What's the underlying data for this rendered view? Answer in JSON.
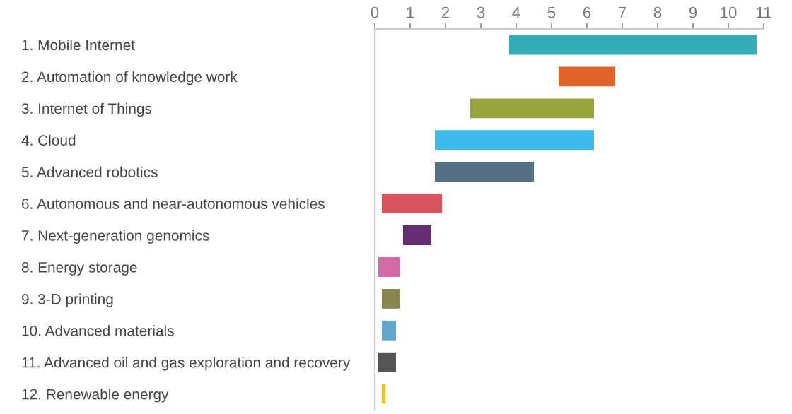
{
  "chart_data": {
    "type": "bar",
    "orientation": "horizontal",
    "categories": [
      "1. Mobile Internet",
      "2. Automation of knowledge work",
      "3. Internet of Things",
      "4. Cloud",
      "5. Advanced robotics",
      "6. Autonomous and near-autonomous vehicles",
      "7. Next-generation genomics",
      "8. Energy storage",
      "9. 3-D printing",
      "10. Advanced materials",
      "11. Advanced oil and gas exploration and recovery",
      "12. Renewable energy"
    ],
    "base": [
      3.8,
      5.2,
      2.7,
      1.7,
      1.7,
      0.2,
      0.8,
      0.1,
      0.2,
      0.2,
      0.1,
      0.2
    ],
    "values": [
      7.0,
      1.6,
      3.5,
      4.5,
      2.8,
      1.7,
      0.8,
      0.6,
      0.5,
      0.4,
      0.5,
      0.1
    ],
    "colors": [
      "#33adb8",
      "#e0632a",
      "#97a43c",
      "#3cbbea",
      "#547085",
      "#d9545f",
      "#632c73",
      "#d46aa5",
      "#87864f",
      "#62a6cc",
      "#555555",
      "#e8c31e"
    ],
    "xlim": [
      0,
      11
    ],
    "xticks": [
      0,
      1,
      2,
      3,
      4,
      5,
      6,
      7,
      8,
      9,
      10,
      11
    ],
    "grid": false,
    "legend": false
  }
}
